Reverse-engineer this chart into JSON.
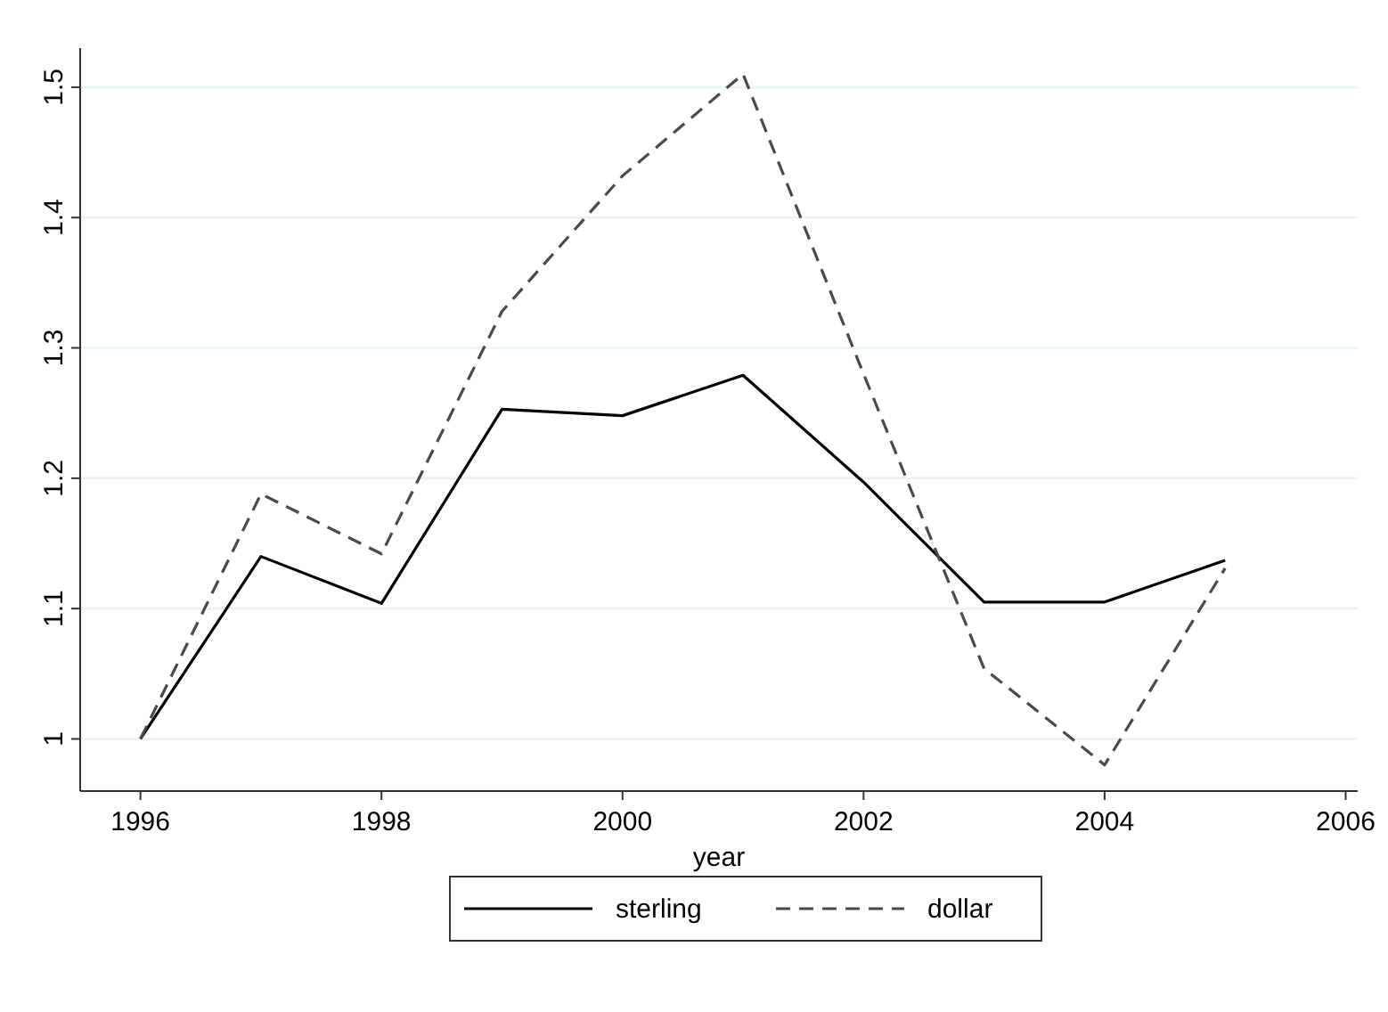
{
  "chart_data": {
    "type": "line",
    "xlabel": "year",
    "x": [
      1996,
      1997,
      1998,
      1999,
      2000,
      2001,
      2002,
      2003,
      2004,
      2005
    ],
    "series": [
      {
        "name": "sterling",
        "color": "#000000",
        "line_style": "solid",
        "values": [
          1.0,
          1.14,
          1.104,
          1.253,
          1.248,
          1.279,
          1.197,
          1.105,
          1.105,
          1.137
        ]
      },
      {
        "name": "dollar",
        "color": "#4a4a4a",
        "line_style": "dashed",
        "values": [
          1.0,
          1.188,
          1.142,
          1.328,
          1.432,
          1.51,
          1.28,
          1.054,
          0.98,
          1.131
        ]
      }
    ],
    "xlim": [
      1995.5,
      2006.1
    ],
    "xticks": [
      1996,
      1998,
      2000,
      2002,
      2004,
      2006
    ],
    "ylim": [
      0.96,
      1.53
    ],
    "yticks": [
      1,
      1.1,
      1.2,
      1.3,
      1.4,
      1.5
    ],
    "grid": "y",
    "legend": "bottom",
    "marker": "none"
  }
}
